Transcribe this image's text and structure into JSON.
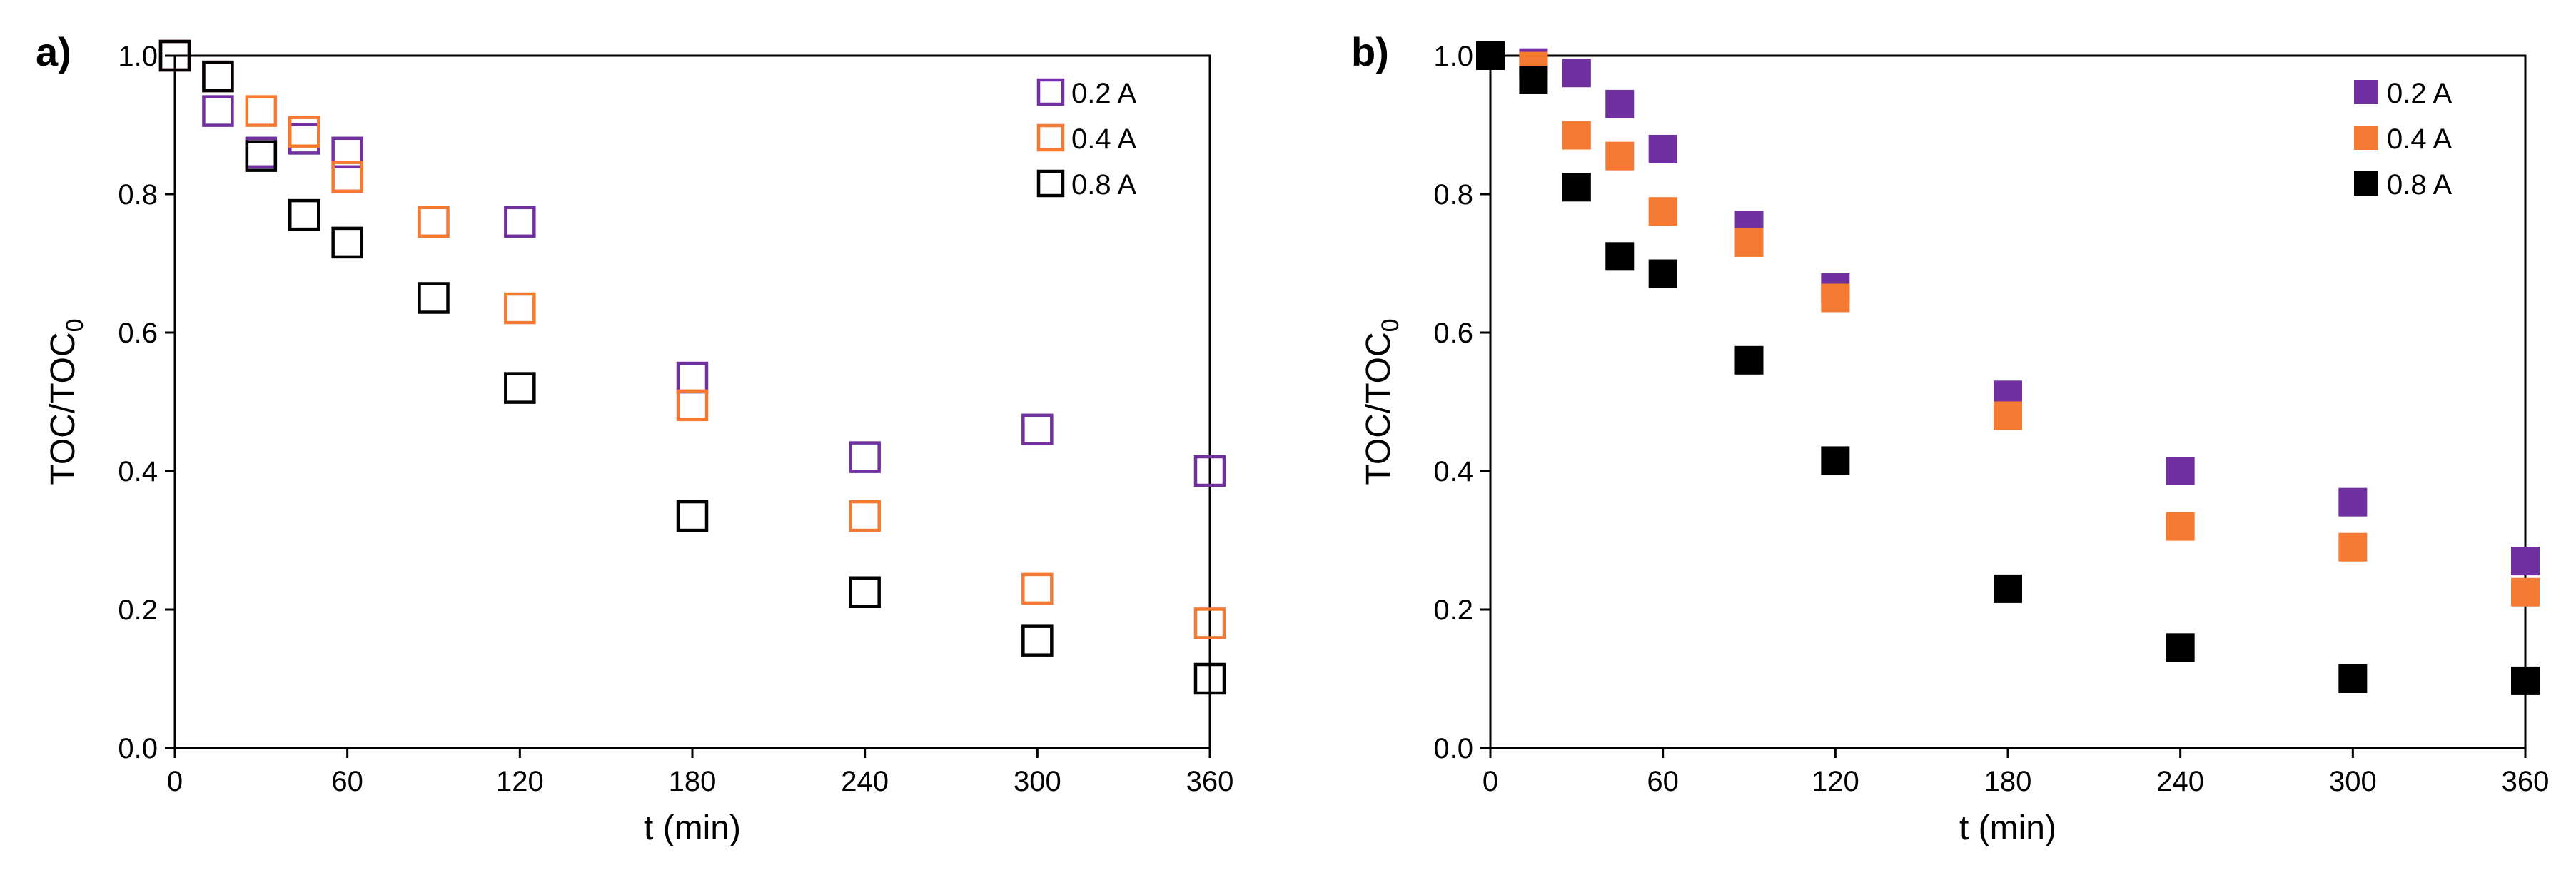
{
  "chart_data": [
    {
      "type": "scatter",
      "panel_label": "a)",
      "marker": "open-square",
      "xlabel": "t (min)",
      "ylabel_main": "TOC/TOC",
      "ylabel_sub": "0",
      "xlim": [
        0,
        360
      ],
      "ylim": [
        0,
        1.0
      ],
      "xticks": [
        "0",
        "60",
        "120",
        "180",
        "240",
        "300",
        "360"
      ],
      "yticks": [
        "0.0",
        "0.2",
        "0.4",
        "0.6",
        "0.8",
        "1.0"
      ],
      "grid": false,
      "legend_position": "top-right",
      "series": [
        {
          "name": "0.2 A",
          "color": "#7030A0",
          "x": [
            0,
            15,
            30,
            45,
            60,
            120,
            180,
            240,
            300,
            360
          ],
          "y": [
            1.0,
            0.92,
            0.86,
            0.88,
            0.86,
            0.76,
            0.535,
            0.42,
            0.46,
            0.4
          ]
        },
        {
          "name": "0.4 A",
          "color": "#F47A33",
          "x": [
            0,
            15,
            30,
            45,
            60,
            90,
            120,
            180,
            240,
            300,
            360
          ],
          "y": [
            1.0,
            0.97,
            0.92,
            0.89,
            0.825,
            0.76,
            0.635,
            0.495,
            0.335,
            0.23,
            0.18
          ]
        },
        {
          "name": "0.8 A",
          "color": "#000000",
          "x": [
            0,
            15,
            30,
            45,
            60,
            90,
            120,
            180,
            240,
            300,
            360
          ],
          "y": [
            1.0,
            0.97,
            0.855,
            0.77,
            0.73,
            0.65,
            0.52,
            0.335,
            0.225,
            0.155,
            0.1
          ]
        }
      ]
    },
    {
      "type": "scatter",
      "panel_label": "b)",
      "marker": "filled-square",
      "xlabel": "t (min)",
      "ylabel_main": "TOC/TOC",
      "ylabel_sub": "0",
      "xlim": [
        0,
        360
      ],
      "ylim": [
        0,
        1.0
      ],
      "xticks": [
        "0",
        "60",
        "120",
        "180",
        "240",
        "300",
        "360"
      ],
      "yticks": [
        "0.0",
        "0.2",
        "0.4",
        "0.6",
        "0.8",
        "1.0"
      ],
      "grid": false,
      "legend_position": "top-right",
      "series": [
        {
          "name": "0.2 A",
          "color": "#7030A0",
          "x": [
            0,
            15,
            30,
            45,
            60,
            90,
            120,
            180,
            240,
            300,
            360
          ],
          "y": [
            1.0,
            0.99,
            0.975,
            0.93,
            0.865,
            0.755,
            0.665,
            0.51,
            0.4,
            0.355,
            0.27
          ]
        },
        {
          "name": "0.4 A",
          "color": "#F47A33",
          "x": [
            0,
            15,
            30,
            45,
            60,
            90,
            120,
            180,
            240,
            300,
            360
          ],
          "y": [
            1.0,
            0.985,
            0.885,
            0.855,
            0.775,
            0.73,
            0.65,
            0.48,
            0.32,
            0.29,
            0.225
          ]
        },
        {
          "name": "0.8 A",
          "color": "#000000",
          "x": [
            0,
            15,
            30,
            45,
            60,
            90,
            120,
            180,
            240,
            300,
            360
          ],
          "y": [
            1.0,
            0.965,
            0.81,
            0.71,
            0.685,
            0.56,
            0.415,
            0.23,
            0.145,
            0.1,
            0.097
          ]
        }
      ]
    }
  ]
}
